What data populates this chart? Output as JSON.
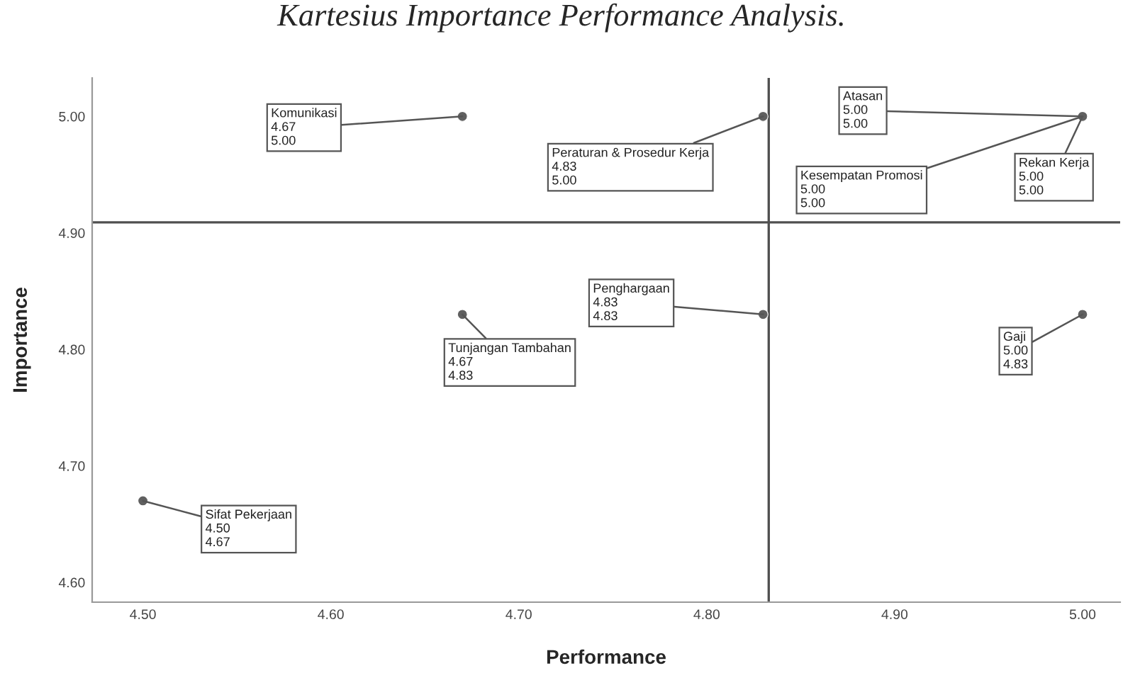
{
  "chart_data": {
    "type": "scatter",
    "title": "Kartesius Importance Performance Analysis.",
    "xlabel": "Performance",
    "ylabel": "Importance",
    "x": [
      4.67,
      4.83,
      5.0,
      4.83,
      4.67,
      5.0,
      4.5
    ],
    "values": [
      5.0,
      5.0,
      5.0,
      4.83,
      4.83,
      4.83,
      4.67
    ],
    "color": "#606060",
    "marker": "circle",
    "xlim": [
      4.473,
      5.02
    ],
    "ylim": [
      4.583,
      5.033
    ],
    "xticks": [
      {
        "value": 4.5,
        "label": "4.50"
      },
      {
        "value": 4.6,
        "label": "4.60"
      },
      {
        "value": 4.7,
        "label": "4.70"
      },
      {
        "value": 4.8,
        "label": "4.80"
      },
      {
        "value": 4.9,
        "label": "4.90"
      },
      {
        "value": 5.0,
        "label": "5.00"
      }
    ],
    "yticks": [
      {
        "value": 4.6,
        "label": "4.60"
      },
      {
        "value": 4.7,
        "label": "4.70"
      },
      {
        "value": 4.8,
        "label": "4.80"
      },
      {
        "value": 4.9,
        "label": "4.90"
      },
      {
        "value": 5.0,
        "label": "5.00"
      }
    ],
    "ref_lines": [
      {
        "axis": "x",
        "value": 4.833,
        "label": null,
        "color": "#505050"
      },
      {
        "axis": "y",
        "value": 4.909,
        "label": null,
        "color": "#505050"
      }
    ],
    "annotations": [
      {
        "text": "Komunikasi\n4.67\n5.00",
        "x": 4.67,
        "y": 5.0
      },
      {
        "text": "Peraturan & Prosedur Kerja\n4.83\n5.00",
        "x": 4.83,
        "y": 5.0
      },
      {
        "text": "Atasan\n5.00\n5.00",
        "x": 5.0,
        "y": 5.0
      },
      {
        "text": "Kesempatan Promosi\n5.00\n5.00",
        "x": 5.0,
        "y": 5.0
      },
      {
        "text": "Rekan Kerja\n5.00\n5.00",
        "x": 5.0,
        "y": 5.0
      },
      {
        "text": "Penghargaan\n4.83\n4.83",
        "x": 4.83,
        "y": 4.83
      },
      {
        "text": "Tunjangan Tambahan\n4.67\n4.83",
        "x": 4.67,
        "y": 4.83
      },
      {
        "text": "Gaji\n5.00\n4.83",
        "x": 5.0,
        "y": 4.83
      },
      {
        "text": "Sifat Pekerjaan\n4.50\n4.67",
        "x": 4.5,
        "y": 4.67
      }
    ],
    "grid": false,
    "legend": false
  }
}
